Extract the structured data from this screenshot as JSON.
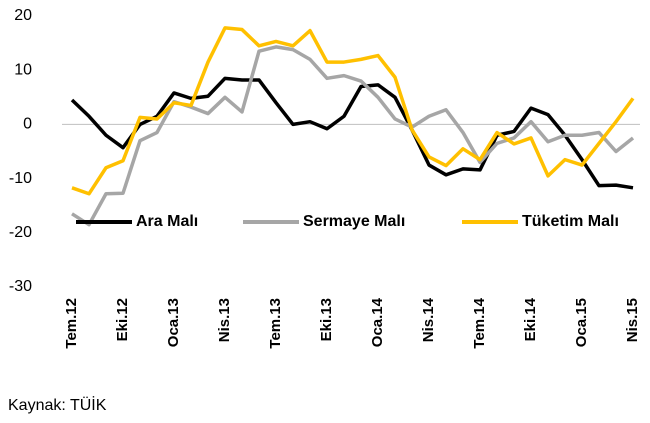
{
  "chart_data": {
    "type": "line",
    "source": "Kaynak: TÜİK",
    "categories": [
      "Tem.12",
      null,
      null,
      "Eki.12",
      null,
      null,
      "Oca.13",
      null,
      null,
      "Nis.13",
      null,
      null,
      "Tem.13",
      null,
      null,
      "Eki.13",
      null,
      null,
      "Oca.14",
      null,
      null,
      "Nis.14",
      null,
      null,
      "Tem.14",
      null,
      null,
      "Eki.14",
      null,
      null,
      "Oca.15",
      null,
      null,
      "Nis.15"
    ],
    "series": [
      {
        "name": "Ara Malı",
        "color": "#000000",
        "values": [
          4.5,
          1.5,
          -2,
          -4.3,
          0,
          1.5,
          5.8,
          4.8,
          5.2,
          8.5,
          8.2,
          8.2,
          4,
          0,
          0.5,
          -0.8,
          1.5,
          7,
          7.3,
          5,
          -1,
          -7.5,
          -9.3,
          -8.2,
          -8.4,
          -2,
          -1.3,
          3,
          1.8,
          -2,
          -6.5,
          -11.3,
          -11.2,
          -11.7
        ]
      },
      {
        "name": "Sermaye Malı",
        "color": "#a6a6a6",
        "values": [
          -16.5,
          -18.5,
          -12.8,
          -12.7,
          -3,
          -1.5,
          4.2,
          3.2,
          2,
          5,
          2.3,
          13.5,
          14.3,
          13.8,
          12,
          8.5,
          9,
          8,
          5,
          1,
          -0.5,
          1.5,
          2.7,
          -1.5,
          -7,
          -3.5,
          -2.5,
          0.5,
          -3.2,
          -2,
          -2,
          -1.5,
          -5,
          -2.5
        ]
      },
      {
        "name": "Tüketim Malı",
        "color": "#ffc000",
        "values": [
          -11.7,
          -12.8,
          -8,
          -6.7,
          1.3,
          1,
          4,
          3.5,
          11.5,
          17.8,
          17.5,
          14.5,
          15.3,
          14.5,
          17.3,
          11.5,
          11.5,
          12,
          12.7,
          8.7,
          -1,
          -6,
          -7.6,
          -4.5,
          -6.5,
          -1.5,
          -3.6,
          -2.5,
          -9.5,
          -6.5,
          -7.5,
          -3.5,
          0.5,
          4.8
        ]
      }
    ],
    "ylim": [
      -30,
      20
    ],
    "yticks": [
      -30,
      -20,
      -10,
      0,
      10,
      20
    ]
  }
}
